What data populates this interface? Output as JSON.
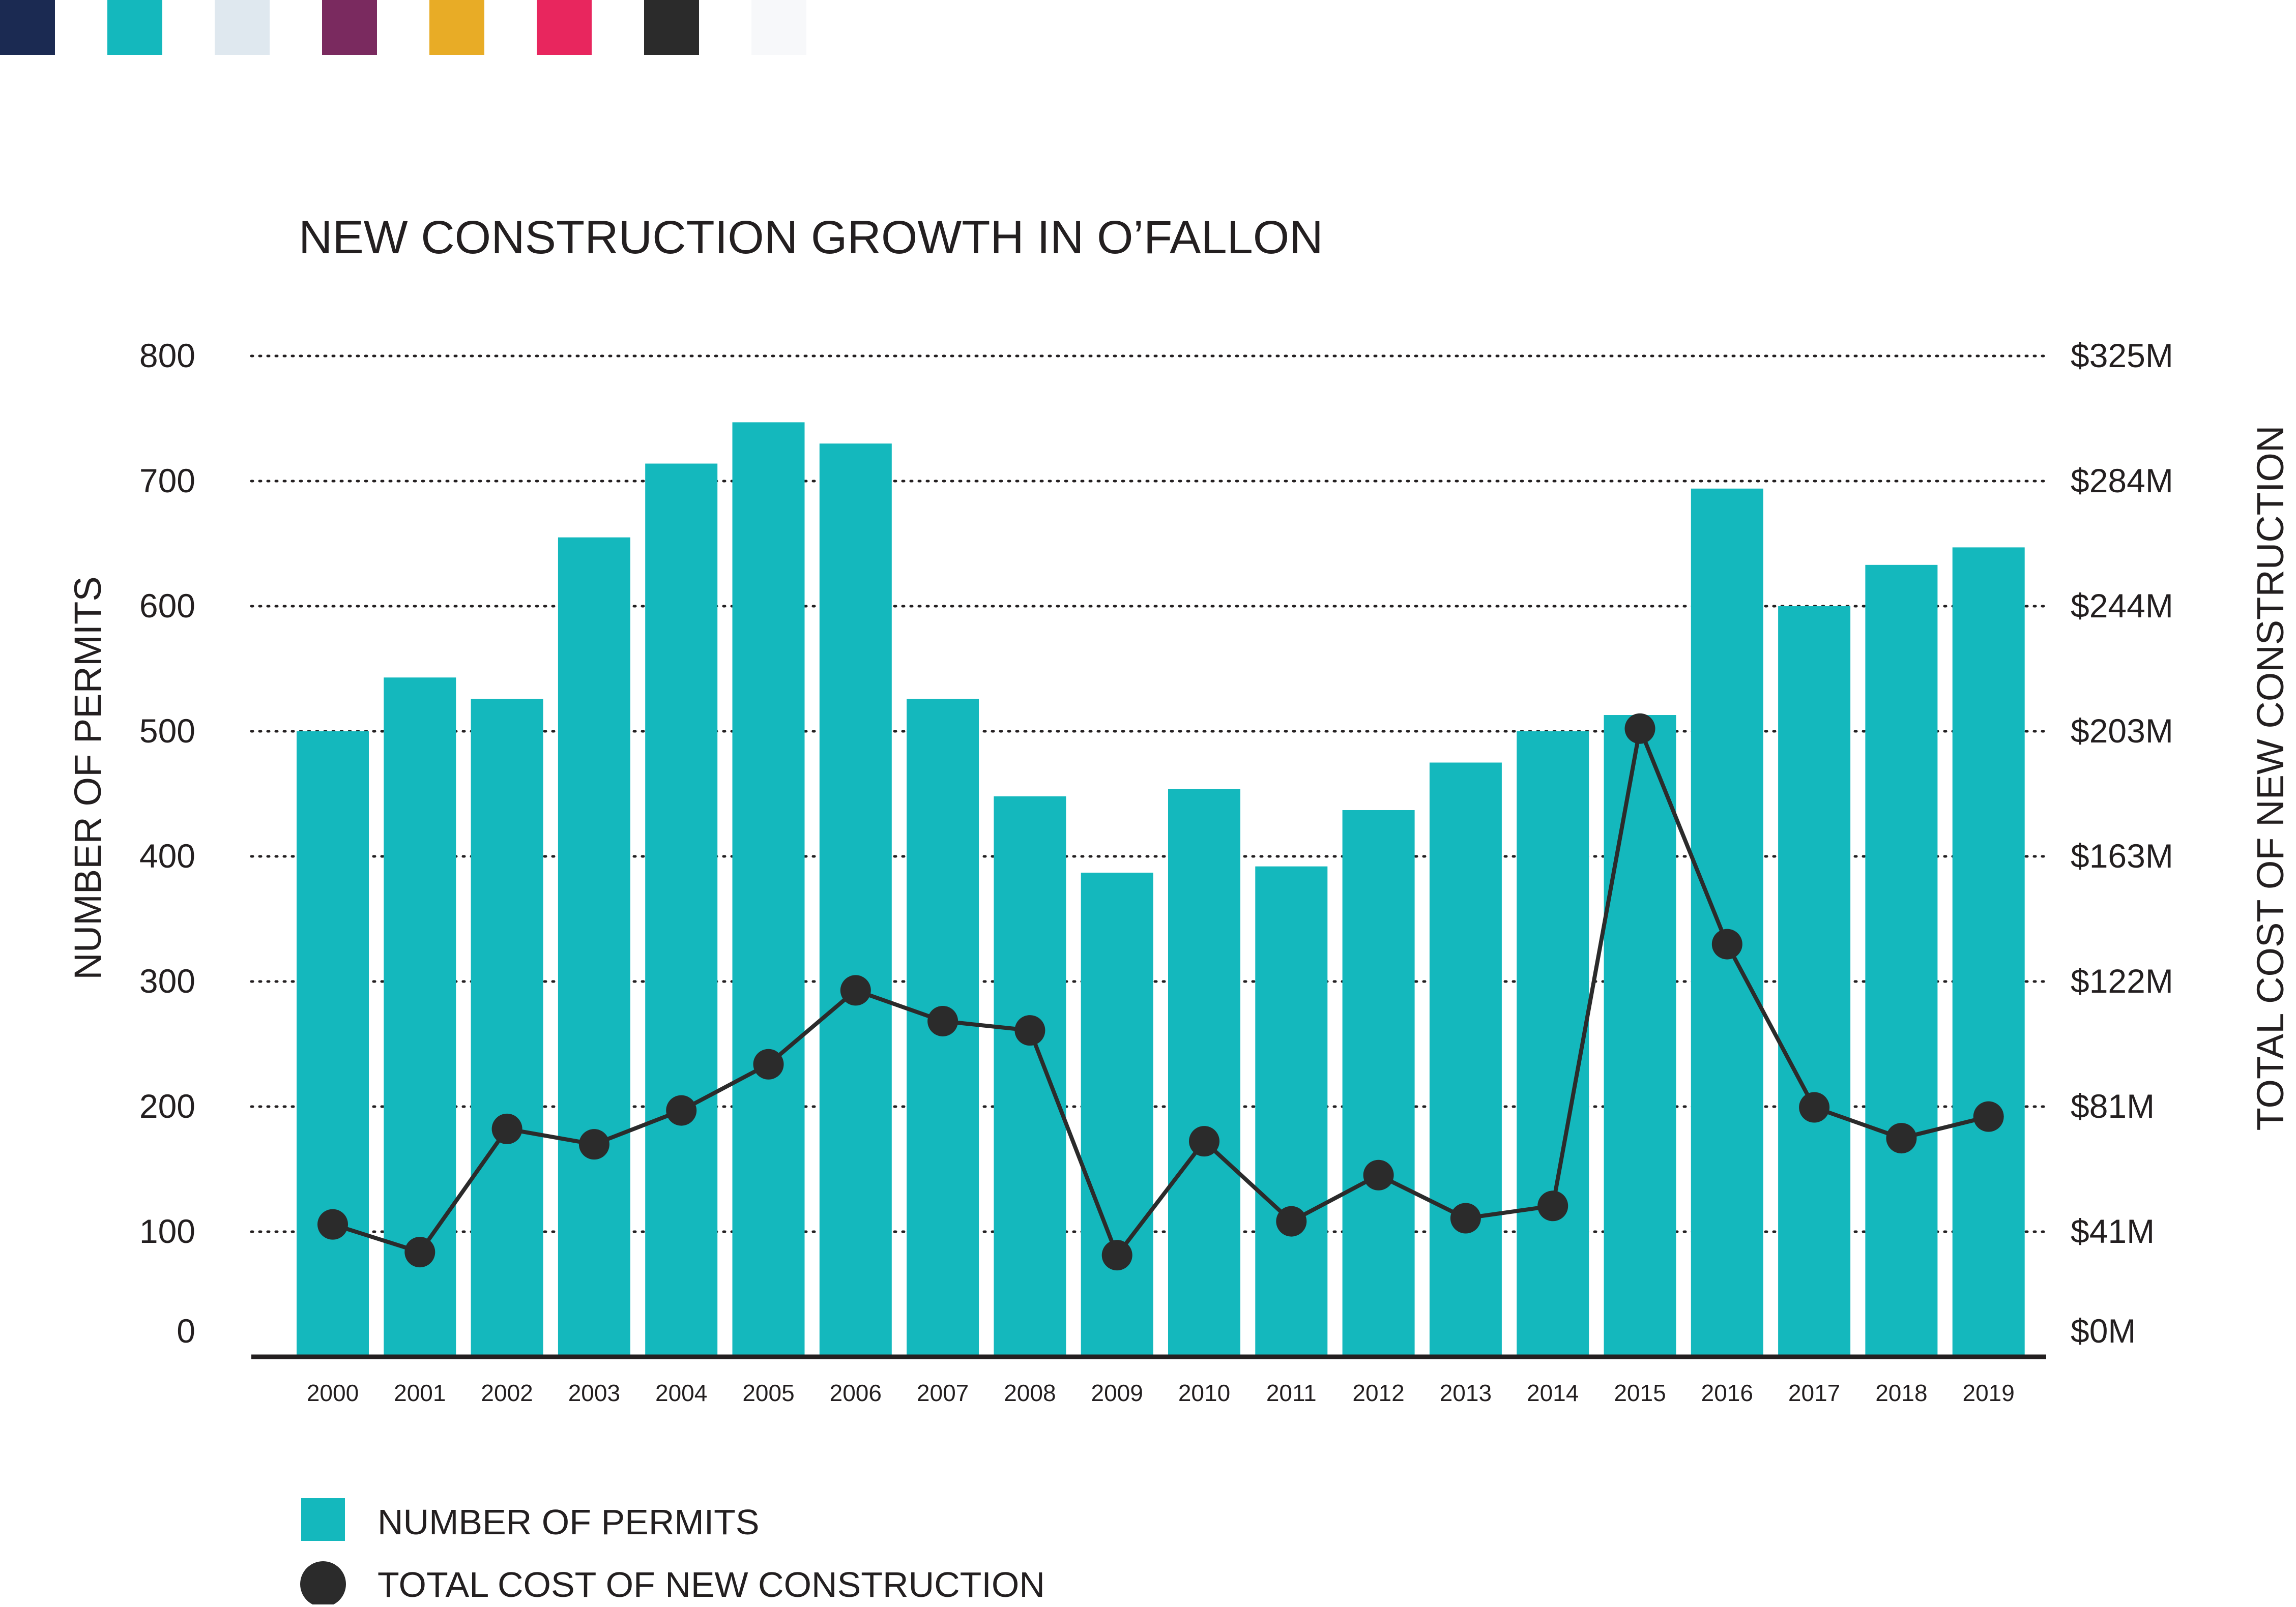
{
  "swatches": [
    "#1b2a52",
    "#14b8bd",
    "#dfe8ef",
    "#7a2a5f",
    "#e8ac26",
    "#e8265e",
    "#2b2b2b",
    "#f7f8fa"
  ],
  "colors": {
    "bar": "#14b8bd",
    "line": "#2b2b2b",
    "axis": "#231f20",
    "grid": "#231f20"
  },
  "chart_data": {
    "type": "bar",
    "title": "NEW CONSTRUCTION GROWTH IN O’FALLON",
    "xlabel": "",
    "ylabel": "NUMBER OF PERMITS",
    "y2label": "TOTAL COST OF NEW CONSTRUCTION",
    "categories": [
      "2000",
      "2001",
      "2002",
      "2003",
      "2004",
      "2005",
      "2006",
      "2007",
      "2008",
      "2009",
      "2010",
      "2011",
      "2012",
      "2013",
      "2014",
      "2015",
      "2016",
      "2017",
      "2018",
      "2019"
    ],
    "ylim": [
      0,
      800
    ],
    "y2lim": [
      0,
      325
    ],
    "yticks": [
      "0",
      "100",
      "200",
      "300",
      "400",
      "500",
      "600",
      "700",
      "800"
    ],
    "y2ticks": [
      "$0M",
      "$41M",
      "$81M",
      "$122M",
      "$163M",
      "$203M",
      "$244M",
      "$284M",
      "$325M"
    ],
    "grid": true,
    "legend_position": "bottom-left",
    "series": [
      {
        "name": "NUMBER OF PERMITS",
        "type": "bar",
        "axis": "left",
        "values": [
          500,
          543,
          526,
          655,
          714,
          747,
          730,
          526,
          448,
          387,
          454,
          392,
          437,
          475,
          500,
          513,
          694,
          600,
          633,
          647
        ]
      },
      {
        "name": "TOTAL COST OF NEW CONSTRUCTION",
        "type": "line",
        "axis": "right",
        "values": [
          43,
          34,
          74,
          69,
          80,
          95,
          119,
          109,
          106,
          33,
          70,
          44,
          59,
          45,
          49,
          204,
          134,
          81,
          71,
          78
        ]
      }
    ]
  }
}
